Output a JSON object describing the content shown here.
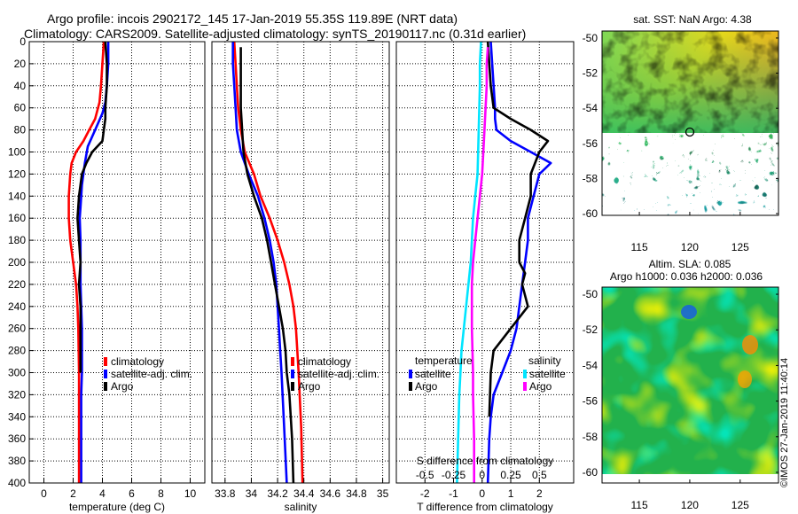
{
  "header": {
    "title_line1": "Argo profile: incois 2902172_145 17-Jan-2019 55.35S 119.89E (NRT data)",
    "title_line2": "Climatology: CARS2009. Satellite-adjusted climatology: synTS_20190117.nc (0.31d earlier)"
  },
  "watermark": "©IMOS 27-Jan-2019 11:40:14",
  "colors": {
    "climatology": "#ff0000",
    "satellite": "#0000ff",
    "argo": "#000000",
    "salinity_satellite": "#00e5ff",
    "salinity_argo": "#ff00ff"
  },
  "chart_data": [
    {
      "id": "temperature",
      "type": "line",
      "xlabel": "temperature (deg C)",
      "ylabel": "",
      "xlim": [
        -1,
        11
      ],
      "ylim": [
        400,
        0
      ],
      "xticks": [
        "0",
        "2",
        "4",
        "6",
        "8",
        "10"
      ],
      "xtick_values": [
        0,
        2,
        4,
        6,
        8,
        10
      ],
      "yticks": [
        "0",
        "20",
        "40",
        "60",
        "80",
        "100",
        "120",
        "140",
        "160",
        "180",
        "200",
        "220",
        "240",
        "260",
        "280",
        "300",
        "320",
        "340",
        "360",
        "380",
        "400"
      ],
      "ytick_values": [
        0,
        20,
        40,
        60,
        80,
        100,
        120,
        140,
        160,
        180,
        200,
        220,
        240,
        260,
        280,
        300,
        320,
        340,
        360,
        380,
        400
      ],
      "legend_position": "bottom-right",
      "series": [
        {
          "name": "climatology",
          "color": "#ff0000",
          "x": [
            4.1,
            4.0,
            3.9,
            3.8,
            3.5,
            3.1,
            2.7,
            2.2,
            1.9,
            1.8,
            1.7,
            1.7,
            1.8,
            2.0,
            2.2,
            2.3,
            2.35,
            2.4,
            2.4,
            2.4,
            2.4
          ],
          "y": [
            0,
            20,
            40,
            55,
            70,
            80,
            90,
            100,
            110,
            120,
            140,
            160,
            180,
            200,
            220,
            240,
            260,
            300,
            320,
            360,
            400
          ]
        },
        {
          "name": "satellite-adj. clim.",
          "color": "#0000ff",
          "x": [
            4.4,
            4.4,
            4.3,
            4.2,
            4.0,
            3.5,
            3.0,
            2.8,
            2.6,
            2.5,
            2.45,
            2.5,
            2.5,
            2.5,
            2.55,
            2.6,
            2.6,
            2.55,
            2.55,
            2.55
          ],
          "y": [
            0,
            20,
            40,
            55,
            65,
            80,
            95,
            110,
            130,
            150,
            160,
            180,
            200,
            220,
            240,
            260,
            300,
            320,
            360,
            400
          ]
        },
        {
          "name": "Argo",
          "color": "#000000",
          "x": [
            4.2,
            4.3,
            4.3,
            4.2,
            4.2,
            4.1,
            4.0,
            3.3,
            2.9,
            2.6,
            2.4,
            2.3,
            2.4,
            2.5,
            2.4,
            2.5,
            2.5
          ],
          "y": [
            0,
            20,
            40,
            60,
            70,
            80,
            90,
            100,
            110,
            120,
            140,
            160,
            180,
            200,
            220,
            240,
            300
          ]
        }
      ]
    },
    {
      "id": "salinity",
      "type": "line",
      "xlabel": "salinity",
      "xlim": [
        33.7,
        35.05
      ],
      "ylim": [
        400,
        0
      ],
      "xticks": [
        "33.8",
        "34",
        "34.2",
        "34.4",
        "34.6",
        "34.8",
        "35"
      ],
      "xtick_values": [
        33.8,
        34.0,
        34.2,
        34.4,
        34.6,
        34.8,
        35.0
      ],
      "legend_position": "bottom-right",
      "series": [
        {
          "name": "climatology",
          "color": "#ff0000",
          "x": [
            33.87,
            33.88,
            33.89,
            33.9,
            33.92,
            33.95,
            34.02,
            34.07,
            34.14,
            34.2,
            34.25,
            34.29,
            34.32,
            34.34,
            34.35,
            34.36,
            34.38,
            34.39
          ],
          "y": [
            0,
            20,
            40,
            60,
            80,
            100,
            120,
            140,
            160,
            180,
            200,
            220,
            240,
            260,
            280,
            300,
            350,
            400
          ]
        },
        {
          "name": "satellite-adj. clim.",
          "color": "#0000ff",
          "x": [
            33.86,
            33.86,
            33.87,
            33.88,
            33.89,
            33.92,
            33.98,
            34.05,
            34.1,
            34.14,
            34.17,
            34.19,
            34.2,
            34.21,
            34.22,
            34.23,
            34.25,
            34.27
          ],
          "y": [
            0,
            20,
            40,
            60,
            80,
            100,
            120,
            140,
            160,
            180,
            200,
            220,
            240,
            260,
            280,
            300,
            350,
            400
          ]
        },
        {
          "name": "Argo",
          "color": "#000000",
          "x": [
            33.92,
            33.92,
            33.92,
            33.92,
            33.93,
            33.94,
            33.97,
            34.02,
            34.08,
            34.12,
            34.15,
            34.18,
            34.21,
            34.24,
            34.26,
            34.27,
            34.29,
            34.31,
            34.32
          ],
          "y": [
            5,
            20,
            40,
            60,
            80,
            100,
            120,
            140,
            160,
            180,
            200,
            220,
            240,
            260,
            280,
            300,
            320,
            360,
            400
          ]
        }
      ]
    },
    {
      "id": "difference",
      "type": "line",
      "xlabel": "T difference from climatology",
      "xlabel_secondary": "S difference from climatology",
      "xlim": [
        -3,
        3.2
      ],
      "ylim": [
        400,
        0
      ],
      "xticks": [
        "-2",
        "-1",
        "0",
        "1",
        "2"
      ],
      "xtick_values": [
        -2,
        -1,
        0,
        1,
        2
      ],
      "secondary_xticks": [
        "-0.5",
        "-0.25",
        "0",
        "0.25",
        "0.5"
      ],
      "secondary_xlim": [
        -0.75,
        0.8
      ],
      "legend_groups": [
        {
          "title": "temperature",
          "entries": [
            "satellite",
            "Argo"
          ]
        },
        {
          "title": "salinity",
          "entries": [
            "satellite",
            "Argo"
          ]
        }
      ],
      "series": [
        {
          "name": "temperature satellite",
          "color": "#0000ff",
          "x": [
            0.3,
            0.35,
            0.4,
            0.45,
            0.45,
            0.5,
            1.0,
            1.7,
            2.4,
            2.0,
            1.8,
            1.6,
            1.6,
            1.5,
            1.4,
            1.3,
            1.2,
            1.0,
            0.7,
            0.4,
            0.3,
            0.25,
            0.2
          ],
          "y": [
            0,
            20,
            40,
            60,
            70,
            80,
            90,
            100,
            110,
            120,
            140,
            160,
            180,
            200,
            220,
            240,
            260,
            280,
            300,
            320,
            340,
            360,
            400
          ]
        },
        {
          "name": "temperature Argo",
          "color": "#000000",
          "x": [
            0.2,
            0.25,
            0.3,
            0.4,
            1.0,
            1.7,
            2.3,
            2.0,
            1.7,
            1.7,
            1.5,
            1.3,
            1.3,
            1.5,
            1.4,
            1.6,
            1.0,
            0.4,
            0.3,
            0.25
          ],
          "y": [
            0,
            20,
            40,
            60,
            70,
            80,
            90,
            100,
            120,
            140,
            160,
            180,
            200,
            210,
            220,
            240,
            260,
            280,
            300,
            340
          ]
        },
        {
          "name": "salinity satellite",
          "color": "#00e5ff",
          "x": [
            -0.01,
            -0.02,
            -0.02,
            -0.03,
            -0.04,
            -0.06,
            -0.08,
            -0.09,
            -0.1,
            -0.12,
            -0.14,
            -0.16,
            -0.18,
            -0.19,
            -0.2,
            -0.21,
            -0.22
          ],
          "y": [
            0,
            20,
            40,
            80,
            120,
            140,
            160,
            180,
            200,
            220,
            240,
            260,
            280,
            300,
            320,
            360,
            400
          ]
        },
        {
          "name": "salinity Argo",
          "color": "#ff00ff",
          "x": [
            0.05,
            0.04,
            0.04,
            0.02,
            0.0,
            -0.04,
            -0.06,
            -0.08,
            -0.09,
            -0.09,
            -0.08,
            -0.08,
            -0.07,
            -0.07
          ],
          "y": [
            5,
            20,
            40,
            80,
            120,
            160,
            180,
            200,
            220,
            260,
            300,
            320,
            360,
            400
          ]
        }
      ]
    }
  ],
  "maps": [
    {
      "id": "sst",
      "title_line1": "sat. SST: NaN Argo: 4.38",
      "title_line2": "",
      "xticks": [
        "115",
        "120",
        "125"
      ],
      "xtick_values": [
        115,
        120,
        125
      ],
      "yticks": [
        "-50",
        "-52",
        "-54",
        "-56",
        "-58",
        "-60"
      ],
      "ytick_values": [
        -50,
        -52,
        -54,
        -56,
        -58,
        -60
      ],
      "lon_range": [
        111.3,
        128.8
      ],
      "lat_range": [
        -60.1,
        -49.6
      ],
      "argo_location": {
        "lon": 119.89,
        "lat": -55.35
      }
    },
    {
      "id": "sla",
      "title_line1": "Altim. SLA: 0.085",
      "title_line2": "Argo h1000: 0.036 h2000: 0.036",
      "xticks": [
        "115",
        "120",
        "125"
      ],
      "xtick_values": [
        115,
        120,
        125
      ],
      "yticks": [
        "-50",
        "-52",
        "-54",
        "-56",
        "-58",
        "-60"
      ],
      "ytick_values": [
        -50,
        -52,
        -54,
        -56,
        -58,
        -60
      ],
      "lon_range": [
        111.3,
        128.8
      ],
      "lat_range": [
        -60.1,
        -49.6
      ]
    }
  ]
}
